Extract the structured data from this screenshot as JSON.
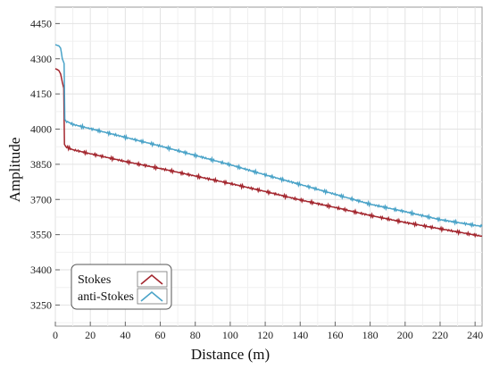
{
  "chart_data": {
    "type": "line",
    "title": "",
    "xlabel": "Distance (m)",
    "ylabel": "Amplitude",
    "xlim": [
      0,
      244
    ],
    "ylim": [
      3160,
      4520
    ],
    "x_ticks": [
      0,
      20,
      40,
      60,
      80,
      100,
      120,
      140,
      160,
      180,
      200,
      220,
      240
    ],
    "y_ticks": [
      3250,
      3400,
      3550,
      3700,
      3850,
      4000,
      4150,
      4300,
      4450
    ],
    "grid": true,
    "legend_position": "bottom-left",
    "series": [
      {
        "name": "Stokes",
        "color": "#a3262e",
        "points": [
          [
            0,
            4258
          ],
          [
            2,
            4250
          ],
          [
            3,
            4235
          ],
          [
            4,
            4200
          ],
          [
            4.8,
            4175
          ],
          [
            5.2,
            3935
          ],
          [
            6,
            3925
          ],
          [
            10,
            3912
          ],
          [
            20,
            3895
          ],
          [
            40,
            3862
          ],
          [
            60,
            3832
          ],
          [
            80,
            3800
          ],
          [
            100,
            3768
          ],
          [
            120,
            3734
          ],
          [
            140,
            3698
          ],
          [
            160,
            3666
          ],
          [
            180,
            3632
          ],
          [
            200,
            3602
          ],
          [
            220,
            3575
          ],
          [
            244,
            3543
          ]
        ]
      },
      {
        "name": "anti-Stokes",
        "color": "#4aa3c8",
        "points": [
          [
            0,
            4360
          ],
          [
            2,
            4355
          ],
          [
            3,
            4345
          ],
          [
            4,
            4300
          ],
          [
            5,
            4280
          ],
          [
            5.4,
            4042
          ],
          [
            6,
            4035
          ],
          [
            10,
            4020
          ],
          [
            20,
            4002
          ],
          [
            40,
            3965
          ],
          [
            60,
            3928
          ],
          [
            80,
            3888
          ],
          [
            100,
            3848
          ],
          [
            120,
            3805
          ],
          [
            140,
            3764
          ],
          [
            160,
            3722
          ],
          [
            180,
            3680
          ],
          [
            200,
            3648
          ],
          [
            220,
            3614
          ],
          [
            244,
            3585
          ]
        ]
      }
    ]
  }
}
